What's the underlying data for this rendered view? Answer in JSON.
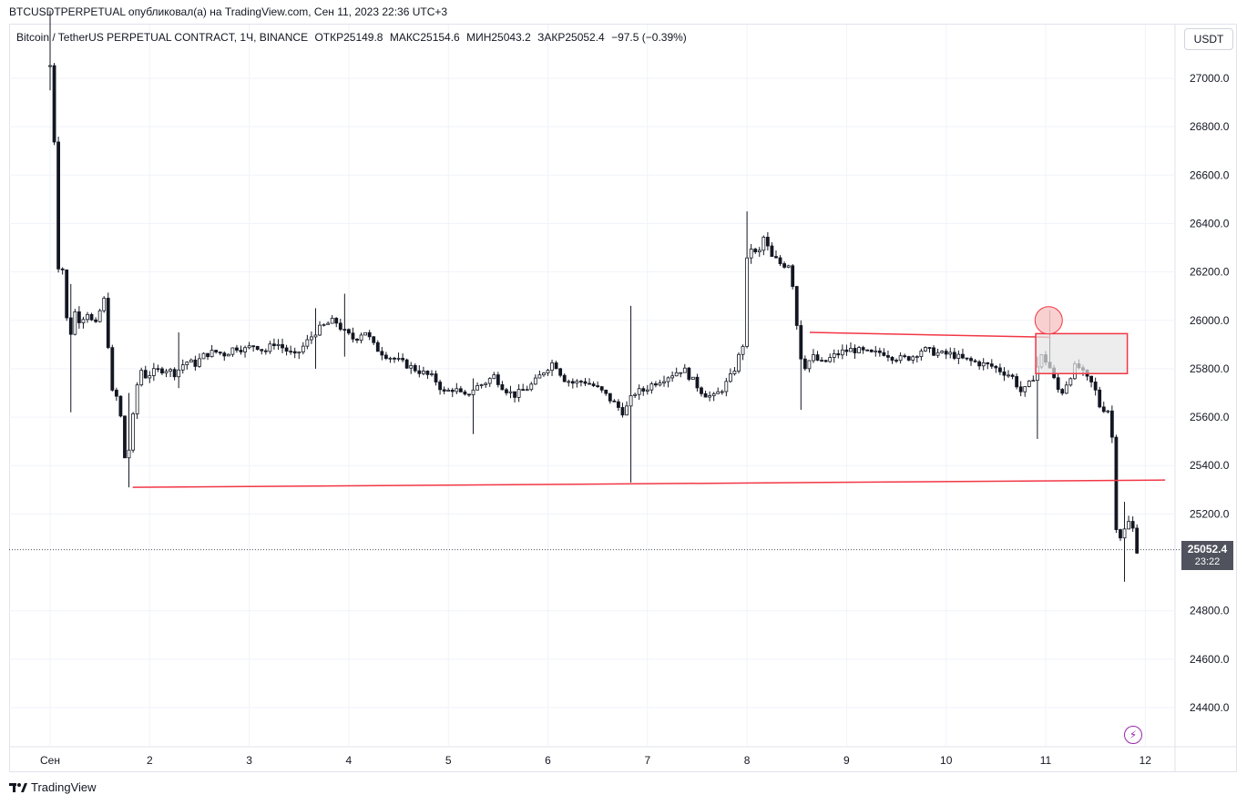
{
  "publish_line": "BTCUSDTPERPETUAL опубликовал(а) на TradingView.com, Сен 11, 2023 22:36 UTC+3",
  "legend": {
    "symbol": "Bitcoin / TetherUS PERPETUAL CONTRACT, 1Ч, BINANCE",
    "open": "ОТКР25149.8",
    "high": "МАКС25154.6",
    "low": "МИН25043.2",
    "close": "ЗАКР25052.4",
    "change": "−97.5 (−0.39%)"
  },
  "currency_button": "USDT",
  "last_price": "25052.4",
  "countdown": "23:22",
  "footer_brand": "TradingView",
  "colors": {
    "grid": "#f0f3fa",
    "candle": "#131722",
    "annotation": "#f23645",
    "highlight": "#e6e6e6",
    "badge": "#50535e"
  },
  "chart_data": {
    "type": "candlestick",
    "y_ticks": [
      "27000.0",
      "26800.0",
      "26600.0",
      "26400.0",
      "26200.0",
      "26000.0",
      "25800.0",
      "25600.0",
      "25400.0",
      "25200.0",
      "24800.0",
      "24600.0",
      "24400.0"
    ],
    "x_ticks": [
      "Сен",
      "2",
      "3",
      "4",
      "5",
      "6",
      "7",
      "8",
      "9",
      "10",
      "11",
      "12"
    ],
    "ylim": [
      24250,
      27280
    ],
    "xlim_days": [
      1,
      12.2
    ],
    "close_path": [
      [
        1.0,
        27050
      ],
      [
        1.03,
        27150
      ],
      [
        1.06,
        26900
      ],
      [
        1.09,
        26700
      ],
      [
        1.12,
        26200
      ],
      [
        1.15,
        26350
      ],
      [
        1.18,
        26100
      ],
      [
        1.21,
        26000
      ],
      [
        1.25,
        25950
      ],
      [
        1.3,
        26050
      ],
      [
        1.35,
        25980
      ],
      [
        1.4,
        26050
      ],
      [
        1.45,
        26000
      ],
      [
        1.5,
        25980
      ],
      [
        1.55,
        26050
      ],
      [
        1.6,
        26100
      ],
      [
        1.65,
        25700
      ],
      [
        1.7,
        25700
      ],
      [
        1.75,
        25600
      ],
      [
        1.8,
        25400
      ],
      [
        1.85,
        25500
      ],
      [
        1.9,
        25700
      ],
      [
        1.95,
        25800
      ],
      [
        2.0,
        25770
      ],
      [
        2.1,
        25790
      ],
      [
        2.2,
        25800
      ],
      [
        2.3,
        25780
      ],
      [
        2.4,
        25830
      ],
      [
        2.5,
        25820
      ],
      [
        2.6,
        25860
      ],
      [
        2.7,
        25870
      ],
      [
        2.8,
        25860
      ],
      [
        2.9,
        25890
      ],
      [
        3.0,
        25880
      ],
      [
        3.1,
        25900
      ],
      [
        3.2,
        25870
      ],
      [
        3.3,
        25910
      ],
      [
        3.4,
        25880
      ],
      [
        3.5,
        25850
      ],
      [
        3.6,
        25900
      ],
      [
        3.7,
        25950
      ],
      [
        3.8,
        25980
      ],
      [
        3.9,
        26000
      ],
      [
        4.0,
        25950
      ],
      [
        4.1,
        25920
      ],
      [
        4.2,
        25960
      ],
      [
        4.3,
        25890
      ],
      [
        4.4,
        25860
      ],
      [
        4.5,
        25840
      ],
      [
        4.6,
        25820
      ],
      [
        4.7,
        25800
      ],
      [
        4.8,
        25780
      ],
      [
        4.9,
        25760
      ],
      [
        5.0,
        25700
      ],
      [
        5.1,
        25720
      ],
      [
        5.2,
        25680
      ],
      [
        5.3,
        25720
      ],
      [
        5.4,
        25740
      ],
      [
        5.5,
        25770
      ],
      [
        5.6,
        25720
      ],
      [
        5.7,
        25690
      ],
      [
        5.8,
        25710
      ],
      [
        5.9,
        25740
      ],
      [
        6.0,
        25790
      ],
      [
        6.1,
        25830
      ],
      [
        6.2,
        25760
      ],
      [
        6.3,
        25740
      ],
      [
        6.4,
        25750
      ],
      [
        6.5,
        25730
      ],
      [
        6.6,
        25700
      ],
      [
        6.7,
        25660
      ],
      [
        6.8,
        25620
      ],
      [
        6.85,
        25650
      ],
      [
        6.9,
        25700
      ],
      [
        7.0,
        25710
      ],
      [
        7.1,
        25740
      ],
      [
        7.2,
        25760
      ],
      [
        7.3,
        25780
      ],
      [
        7.4,
        25800
      ],
      [
        7.5,
        25750
      ],
      [
        7.6,
        25700
      ],
      [
        7.7,
        25680
      ],
      [
        7.8,
        25720
      ],
      [
        7.9,
        25780
      ],
      [
        8.0,
        25900
      ],
      [
        8.02,
        26100
      ],
      [
        8.05,
        26300
      ],
      [
        8.1,
        26300
      ],
      [
        8.15,
        26250
      ],
      [
        8.2,
        26350
      ],
      [
        8.25,
        26300
      ],
      [
        8.3,
        26250
      ],
      [
        8.35,
        26250
      ],
      [
        8.4,
        26220
      ],
      [
        8.45,
        26250
      ],
      [
        8.5,
        26150
      ],
      [
        8.55,
        25950
      ],
      [
        8.6,
        25800
      ],
      [
        8.7,
        25850
      ],
      [
        8.8,
        25820
      ],
      [
        8.9,
        25850
      ],
      [
        9.0,
        25870
      ],
      [
        9.1,
        25880
      ],
      [
        9.2,
        25870
      ],
      [
        9.3,
        25860
      ],
      [
        9.4,
        25870
      ],
      [
        9.5,
        25850
      ],
      [
        9.6,
        25840
      ],
      [
        9.7,
        25850
      ],
      [
        9.8,
        25880
      ],
      [
        9.9,
        25870
      ],
      [
        10.0,
        25860
      ],
      [
        10.1,
        25860
      ],
      [
        10.2,
        25840
      ],
      [
        10.3,
        25830
      ],
      [
        10.4,
        25820
      ],
      [
        10.5,
        25810
      ],
      [
        10.6,
        25790
      ],
      [
        10.7,
        25770
      ],
      [
        10.8,
        25700
      ],
      [
        10.85,
        25720
      ],
      [
        10.9,
        25750
      ],
      [
        10.95,
        25800
      ],
      [
        11.0,
        25850
      ],
      [
        11.05,
        25830
      ],
      [
        11.1,
        25790
      ],
      [
        11.15,
        25720
      ],
      [
        11.2,
        25700
      ],
      [
        11.25,
        25740
      ],
      [
        11.3,
        25780
      ],
      [
        11.35,
        25820
      ],
      [
        11.4,
        25790
      ],
      [
        11.45,
        25760
      ],
      [
        11.5,
        25740
      ],
      [
        11.55,
        25700
      ],
      [
        11.6,
        25620
      ],
      [
        11.65,
        25650
      ],
      [
        11.7,
        25590
      ],
      [
        11.75,
        25150
      ],
      [
        11.8,
        25100
      ],
      [
        11.85,
        25150
      ],
      [
        11.9,
        25180
      ],
      [
        11.95,
        25052.4
      ]
    ],
    "spikes": [
      {
        "day": 1.0,
        "high": 27280,
        "low": 26950
      },
      {
        "day": 1.22,
        "high": 26150,
        "low": 25620
      },
      {
        "day": 1.8,
        "high": 25700,
        "low": 25310
      },
      {
        "day": 2.3,
        "high": 25950,
        "low": 25720
      },
      {
        "day": 3.65,
        "high": 26050,
        "low": 25800
      },
      {
        "day": 3.95,
        "high": 26110,
        "low": 25850
      },
      {
        "day": 5.25,
        "high": 25760,
        "low": 25530
      },
      {
        "day": 6.85,
        "high": 26060,
        "low": 25330
      },
      {
        "day": 8.0,
        "high": 26450,
        "low": 25950
      },
      {
        "day": 8.55,
        "high": 26000,
        "low": 25630
      },
      {
        "day": 10.9,
        "high": 25850,
        "low": 25510
      },
      {
        "day": 11.05,
        "high": 26040,
        "low": 25880
      },
      {
        "day": 11.78,
        "high": 25250,
        "low": 24920
      }
    ],
    "support_line": {
      "start": [
        1.83,
        25310
      ],
      "end": [
        12.2,
        25340
      ]
    },
    "resistance_line": {
      "start": [
        8.63,
        25950
      ],
      "end": [
        11.05,
        25930
      ]
    },
    "highlight_zone": {
      "start_day": 10.9,
      "end_day": 11.82,
      "top": 25945,
      "bottom": 25780
    },
    "circle_marker": {
      "day": 11.03,
      "price": 26000
    }
  }
}
